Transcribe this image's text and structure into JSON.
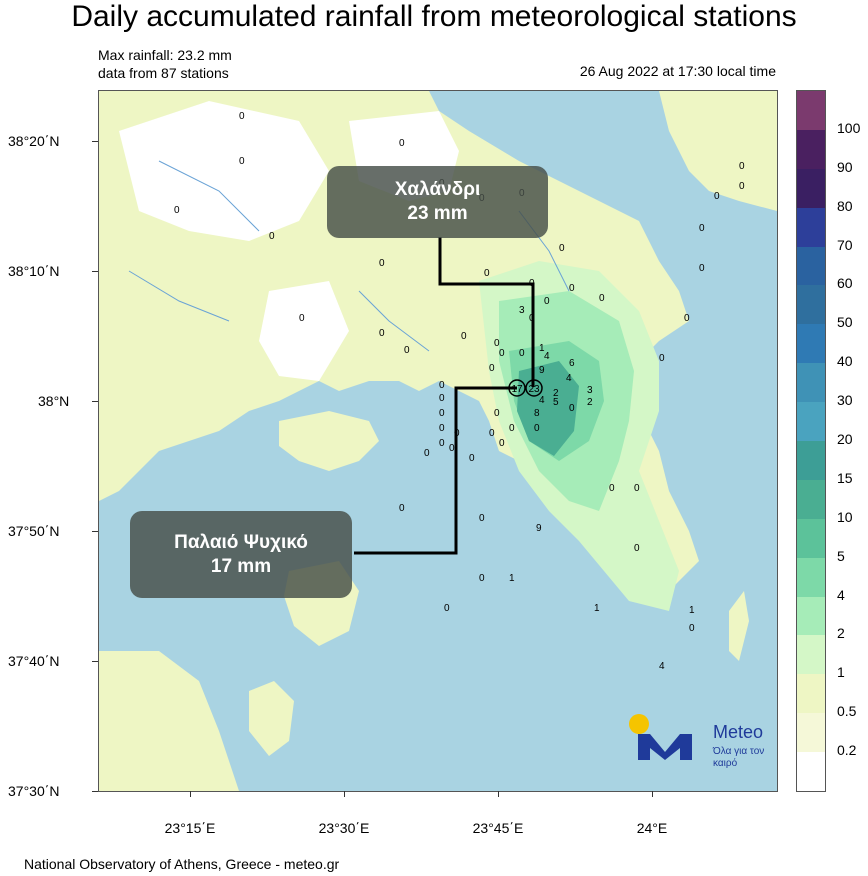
{
  "header": {
    "title": "Daily accumulated rainfall from meteorological stations",
    "max_rainfall": "Max rainfall: 23.2 mm",
    "stations": "data from 87 stations",
    "timestamp": "26 Aug 2022 at 17:30 local time"
  },
  "axes": {
    "lat_labels": [
      "38°20΄N",
      "38°10΄N",
      "38°N",
      "37°50΄N",
      "37°40΄N",
      "37°30΄N"
    ],
    "lon_labels": [
      "23°15΄E",
      "23°30΄E",
      "23°45΄E",
      "24°E"
    ]
  },
  "legend": {
    "labels": [
      "100",
      "90",
      "80",
      "70",
      "60",
      "50",
      "40",
      "30",
      "20",
      "15",
      "10",
      "5",
      "4",
      "2",
      "1",
      "0.5",
      "0.2"
    ],
    "colors": [
      "#7b3a6e",
      "#4a2060",
      "#3a1f62",
      "#2d3f9a",
      "#2a62a0",
      "#2f6f9e",
      "#2f7ab4",
      "#3f92b6",
      "#4aa3bf",
      "#3d9e96",
      "#4aae92",
      "#5cc29a",
      "#7dd9a8",
      "#a6ecb8",
      "#d4f7c7",
      "#eef6c4",
      "#f5f8d8",
      "#ffffff"
    ]
  },
  "callouts": {
    "chalandri_name": "Χαλάνδρι",
    "chalandri_value": "23 mm",
    "psychiko_name": "Παλαιό Ψυχικό",
    "psychiko_value": "17 mm"
  },
  "stations_labels": {
    "psychiko_marker": "17",
    "chalandri_marker": "23"
  },
  "station_values": [
    "0",
    "0",
    "0",
    "0",
    "0",
    "0",
    "0",
    "0",
    "0",
    "0",
    "0",
    "0",
    "0",
    "0",
    "0",
    "0",
    "0",
    "0",
    "0",
    "0",
    "0",
    "0",
    "0",
    "0",
    "0",
    "0",
    "0",
    "0",
    "0",
    "0",
    "0",
    "0",
    "0",
    "0",
    "0",
    "0",
    "0",
    "0",
    "0",
    "0",
    "0",
    "0",
    "0",
    "0",
    "0",
    "0",
    "1",
    "4",
    "9",
    "6",
    "4",
    "3",
    "2",
    "2",
    "5",
    "8",
    "4",
    "9",
    "1",
    "1",
    "1",
    "4",
    "3",
    "0",
    "0",
    "0",
    "0",
    "0",
    "0",
    "0",
    "0"
  ],
  "branding": {
    "name": "Meteo",
    "tagline": "Όλα για τον καιρό",
    "accent": "#f5c400",
    "brand_blue": "#1f3a9a"
  },
  "footer": "National Observatory of Athens, Greece - meteo.gr"
}
